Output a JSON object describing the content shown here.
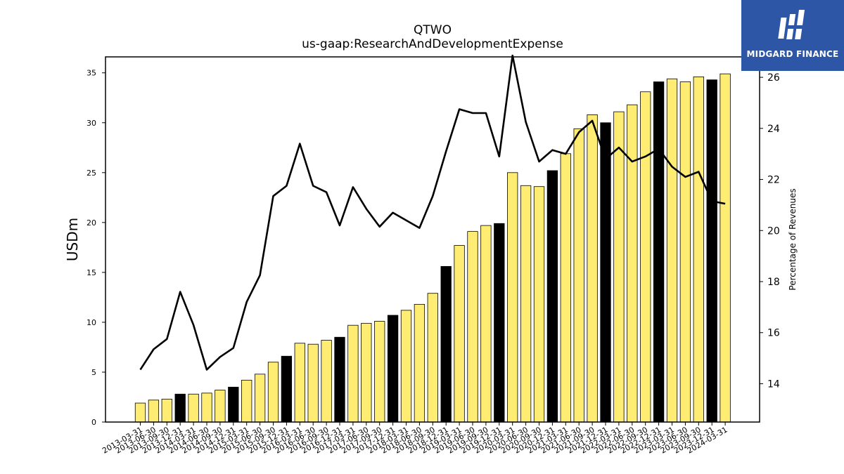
{
  "chart_data": {
    "type": "bar",
    "title": "QTWO",
    "subtitle": "us-gaap:ResearchAndDevelopmentExpense",
    "ylabel": "USDm",
    "y2label": "Percentage of Revenues",
    "ylim": [
      0,
      36.6
    ],
    "y2lim": [
      12.5,
      26.8
    ],
    "yticks": [
      0,
      5,
      10,
      15,
      20,
      25,
      30,
      35
    ],
    "y2ticks": [
      14,
      16,
      18,
      20,
      22,
      24,
      26
    ],
    "categories": [
      "2013-03-31",
      "2013-06-30",
      "2013-09-30",
      "2013-12-31",
      "2014-03-31",
      "2014-06-30",
      "2014-09-30",
      "2014-12-31",
      "2015-03-31",
      "2015-06-30",
      "2015-09-30",
      "2015-12-31",
      "2016-03-31",
      "2016-06-30",
      "2016-09-30",
      "2016-12-31",
      "2017-03-31",
      "2017-06-30",
      "2017-09-30",
      "2017-12-31",
      "2018-03-31",
      "2018-06-30",
      "2018-09-30",
      "2018-12-31",
      "2019-03-31",
      "2019-06-30",
      "2019-09-30",
      "2019-12-31",
      "2020-03-31",
      "2020-06-30",
      "2020-09-30",
      "2020-12-31",
      "2021-03-31",
      "2021-06-30",
      "2021-09-30",
      "2021-12-31",
      "2022-03-31",
      "2022-06-30",
      "2022-09-30",
      "2022-12-31",
      "2023-03-31",
      "2023-06-30",
      "2023-09-30",
      "2023-12-31",
      "2024-03-31"
    ],
    "series": [
      {
        "type": "bar",
        "axis": "left",
        "values": [
          1.9,
          2.2,
          2.3,
          2.8,
          2.8,
          2.9,
          3.2,
          3.5,
          4.2,
          4.8,
          6.0,
          6.6,
          7.9,
          7.8,
          8.2,
          8.5,
          9.7,
          9.9,
          10.1,
          10.7,
          11.2,
          11.8,
          12.9,
          15.6,
          17.7,
          19.1,
          19.7,
          19.9,
          25.0,
          23.7,
          23.6,
          25.2,
          26.9,
          29.4,
          30.8,
          30.0,
          31.1,
          31.8,
          33.1,
          34.1,
          34.4,
          34.1,
          34.6,
          34.3,
          34.9
        ]
      },
      {
        "type": "line",
        "axis": "right",
        "values": [
          14.55,
          15.35,
          15.75,
          17.6,
          16.3,
          14.55,
          15.05,
          15.4,
          17.2,
          18.25,
          21.35,
          21.75,
          23.4,
          21.75,
          21.5,
          20.2,
          21.7,
          20.85,
          20.15,
          20.7,
          20.4,
          20.1,
          21.35,
          23.1,
          24.75,
          24.6,
          24.6,
          22.9,
          26.9,
          24.25,
          22.7,
          23.15,
          23.0,
          23.85,
          24.3,
          22.8,
          23.25,
          22.7,
          22.9,
          23.2,
          22.5,
          22.1,
          22.3,
          21.15,
          21.05
        ]
      }
    ],
    "bar_colors": {
      "quarter": "#ffec73",
      "year_end": "#000000"
    },
    "line_color": "#000000"
  },
  "logo": {
    "text": "MIDGARD FINANCE"
  }
}
